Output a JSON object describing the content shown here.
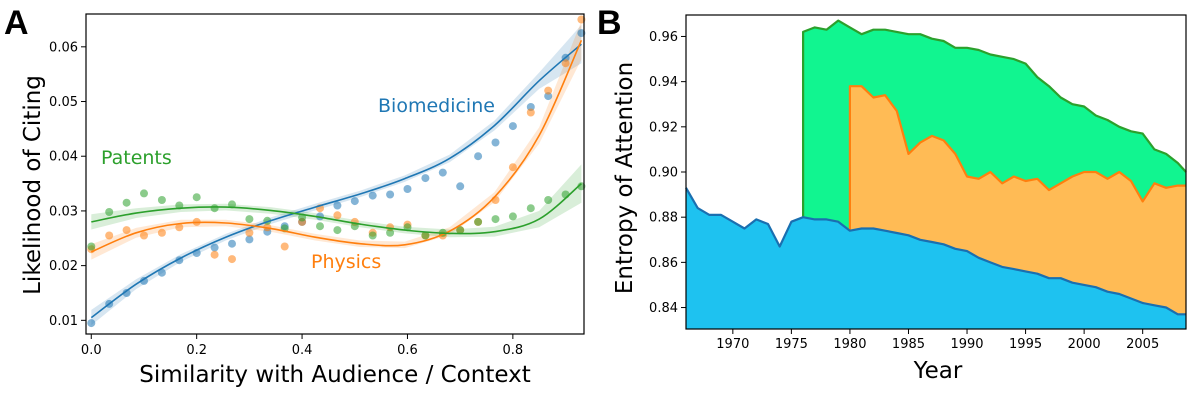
{
  "chart_data": [
    {
      "type": "scatter",
      "panel_label": "A",
      "title": "",
      "xlabel": "Similarity with Audience / Context",
      "ylabel": "Likelihood of Citing",
      "xlim": [
        -0.01,
        0.935
      ],
      "ylim": [
        0.0075,
        0.066
      ],
      "xticks": [
        0.0,
        0.2,
        0.4,
        0.6,
        0.8
      ],
      "xtick_labels": [
        "0.0",
        "0.2",
        "0.4",
        "0.6",
        "0.8"
      ],
      "yticks": [
        0.01,
        0.02,
        0.03,
        0.04,
        0.05,
        0.06
      ],
      "ytick_labels": [
        "0.01",
        "0.02",
        "0.03",
        "0.04",
        "0.05",
        "0.06"
      ],
      "grid": false,
      "legend": "inline labels",
      "series": [
        {
          "name": "Biomedicine",
          "color": "#1f77b4",
          "x": [
            0.0,
            0.034,
            0.067,
            0.1,
            0.134,
            0.167,
            0.2,
            0.234,
            0.267,
            0.3,
            0.334,
            0.367,
            0.4,
            0.434,
            0.467,
            0.5,
            0.534,
            0.567,
            0.6,
            0.634,
            0.667,
            0.7,
            0.734,
            0.767,
            0.8,
            0.834,
            0.867,
            0.9,
            0.93
          ],
          "y": [
            0.0095,
            0.013,
            0.015,
            0.0172,
            0.0187,
            0.021,
            0.0223,
            0.0233,
            0.024,
            0.0248,
            0.0262,
            0.0272,
            0.028,
            0.029,
            0.031,
            0.0318,
            0.0328,
            0.033,
            0.034,
            0.036,
            0.037,
            0.0345,
            0.04,
            0.0425,
            0.0455,
            0.049,
            0.051,
            0.058,
            0.0625
          ],
          "fit": [
            0.0105,
            0.0166,
            0.0214,
            0.0252,
            0.0282,
            0.0307,
            0.0331,
            0.0359,
            0.0396,
            0.0456,
            0.0538,
            0.0605
          ]
        },
        {
          "name": "Physics",
          "color": "#ff7f0e",
          "x": [
            0.0,
            0.034,
            0.067,
            0.1,
            0.134,
            0.167,
            0.2,
            0.234,
            0.267,
            0.3,
            0.334,
            0.367,
            0.4,
            0.434,
            0.467,
            0.5,
            0.534,
            0.567,
            0.6,
            0.634,
            0.667,
            0.7,
            0.734,
            0.767,
            0.8,
            0.834,
            0.867,
            0.9,
            0.93
          ],
          "y": [
            0.023,
            0.0255,
            0.0265,
            0.0255,
            0.026,
            0.027,
            0.028,
            0.022,
            0.0212,
            0.026,
            0.027,
            0.0235,
            0.028,
            0.0305,
            0.0292,
            0.028,
            0.026,
            0.027,
            0.0275,
            0.0255,
            0.0255,
            0.0265,
            0.028,
            0.032,
            0.038,
            0.048,
            0.052,
            0.057,
            0.065
          ],
          "fit": [
            0.0225,
            0.026,
            0.0277,
            0.0278,
            0.0268,
            0.0252,
            0.024,
            0.0238,
            0.0263,
            0.0325,
            0.0438,
            0.0612
          ]
        },
        {
          "name": "Patents",
          "color": "#2ca02c",
          "x": [
            0.0,
            0.034,
            0.067,
            0.1,
            0.134,
            0.167,
            0.2,
            0.234,
            0.267,
            0.3,
            0.334,
            0.367,
            0.4,
            0.434,
            0.467,
            0.5,
            0.534,
            0.567,
            0.6,
            0.634,
            0.667,
            0.7,
            0.734,
            0.767,
            0.8,
            0.834,
            0.867,
            0.9,
            0.93
          ],
          "y": [
            0.0235,
            0.0298,
            0.0315,
            0.0332,
            0.032,
            0.031,
            0.0325,
            0.0305,
            0.0312,
            0.0285,
            0.0282,
            0.0268,
            0.0288,
            0.0272,
            0.0265,
            0.0272,
            0.0255,
            0.026,
            0.027,
            0.0255,
            0.026,
            0.0265,
            0.028,
            0.0285,
            0.029,
            0.0305,
            0.032,
            0.033,
            0.0345
          ],
          "fit": [
            0.028,
            0.0296,
            0.0305,
            0.0307,
            0.0301,
            0.029,
            0.0276,
            0.0265,
            0.0259,
            0.0262,
            0.0285,
            0.035
          ]
        }
      ],
      "fit_x": [
        0.0,
        0.085,
        0.17,
        0.255,
        0.34,
        0.425,
        0.51,
        0.595,
        0.68,
        0.765,
        0.85,
        0.93
      ],
      "fit_band_halfwidth": [
        0.0014,
        0.0009,
        0.0007,
        0.0006,
        0.0006,
        0.0006,
        0.0006,
        0.0006,
        0.0007,
        0.0009,
        0.0015,
        0.0035
      ],
      "annotations": [
        "Biomedicine",
        "Physics",
        "Patents"
      ]
    },
    {
      "type": "area",
      "panel_label": "B",
      "title": "",
      "xlabel": "Year",
      "ylabel": "Entropy of Attention",
      "xlim": [
        1966,
        2008.7
      ],
      "ylim": [
        0.8305,
        0.9695
      ],
      "xticks": [
        1970,
        1975,
        1980,
        1985,
        1990,
        1995,
        2000,
        2005
      ],
      "xtick_labels": [
        "1970",
        "1975",
        "1980",
        "1985",
        "1990",
        "1995",
        "2000",
        "2005"
      ],
      "yticks": [
        0.84,
        0.86,
        0.88,
        0.9,
        0.92,
        0.94,
        0.96
      ],
      "ytick_labels": [
        "0.84",
        "0.86",
        "0.88",
        "0.90",
        "0.92",
        "0.94",
        "0.96"
      ],
      "grid": false,
      "legend": "none",
      "series": [
        {
          "name": "",
          "fill": "#1ec2f0",
          "line": "#1a6fb0",
          "x": [
            1966,
            1967,
            1968,
            1969,
            1970,
            1971,
            1972,
            1973,
            1974,
            1975,
            1976,
            1977,
            1978,
            1979,
            1980,
            1981,
            1982,
            1983,
            1984,
            1985,
            1986,
            1987,
            1988,
            1989,
            1990,
            1991,
            1992,
            1993,
            1994,
            1995,
            1996,
            1997,
            1998,
            1999,
            2000,
            2001,
            2002,
            2003,
            2004,
            2005,
            2006,
            2007,
            2008,
            2008.7
          ],
          "y": [
            0.893,
            0.884,
            0.881,
            0.881,
            0.878,
            0.875,
            0.879,
            0.877,
            0.867,
            0.878,
            0.88,
            0.879,
            0.879,
            0.878,
            0.874,
            0.875,
            0.875,
            0.874,
            0.873,
            0.872,
            0.87,
            0.869,
            0.868,
            0.866,
            0.865,
            0.862,
            0.86,
            0.858,
            0.857,
            0.856,
            0.855,
            0.853,
            0.853,
            0.851,
            0.85,
            0.849,
            0.847,
            0.846,
            0.844,
            0.842,
            0.841,
            0.84,
            0.837,
            0.837
          ]
        },
        {
          "name": "",
          "fill": "#ffbb55",
          "line": "#ff7f0e",
          "x": [
            1980,
            1981,
            1982,
            1983,
            1984,
            1985,
            1986,
            1987,
            1988,
            1989,
            1990,
            1991,
            1992,
            1993,
            1994,
            1995,
            1996,
            1997,
            1998,
            1999,
            2000,
            2001,
            2002,
            2003,
            2004,
            2005,
            2006,
            2007,
            2008,
            2008.7
          ],
          "y": [
            0.938,
            0.938,
            0.933,
            0.934,
            0.927,
            0.908,
            0.913,
            0.916,
            0.914,
            0.908,
            0.898,
            0.897,
            0.9,
            0.895,
            0.898,
            0.896,
            0.897,
            0.892,
            0.895,
            0.898,
            0.9,
            0.9,
            0.897,
            0.9,
            0.896,
            0.887,
            0.895,
            0.893,
            0.894,
            0.894
          ]
        },
        {
          "name": "",
          "fill": "#11f590",
          "line": "#2ca02c",
          "x": [
            1976,
            1977,
            1978,
            1979,
            1980,
            1981,
            1982,
            1983,
            1984,
            1985,
            1986,
            1987,
            1988,
            1989,
            1990,
            1991,
            1992,
            1993,
            1994,
            1995,
            1996,
            1997,
            1998,
            1999,
            2000,
            2001,
            2002,
            2003,
            2004,
            2005,
            2006,
            2007,
            2008,
            2008.7
          ],
          "y": [
            0.962,
            0.964,
            0.963,
            0.967,
            0.964,
            0.961,
            0.963,
            0.963,
            0.962,
            0.961,
            0.961,
            0.959,
            0.958,
            0.955,
            0.955,
            0.954,
            0.952,
            0.951,
            0.95,
            0.948,
            0.942,
            0.938,
            0.933,
            0.93,
            0.929,
            0.925,
            0.923,
            0.92,
            0.918,
            0.917,
            0.91,
            0.908,
            0.904,
            0.9
          ]
        }
      ]
    }
  ]
}
